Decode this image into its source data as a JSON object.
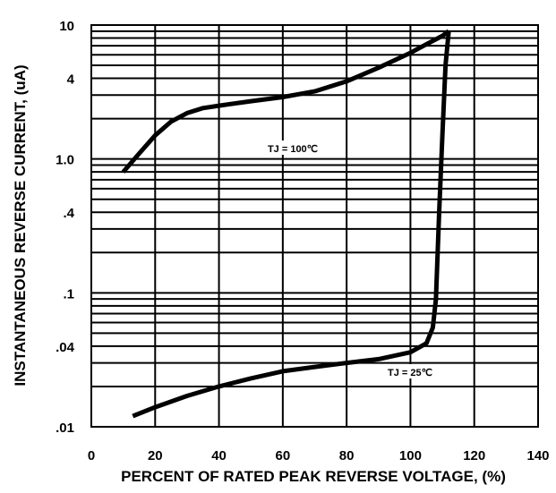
{
  "chart_data": {
    "type": "line",
    "title": "",
    "xlabel": "PERCENT OF RATED PEAK REVERSE VOLTAGE, (%)",
    "ylabel": "INSTANTANEOUS REVERSE CURRENT, (uA)",
    "xlim": [
      0,
      140
    ],
    "ylim": [
      0.01,
      10
    ],
    "y_scale": "log",
    "grid": true,
    "x_ticks": [
      0,
      20,
      40,
      60,
      80,
      100,
      120,
      140
    ],
    "x_tick_labels": [
      "0",
      "20",
      "40",
      "60",
      "80",
      "100",
      "120",
      "140"
    ],
    "y_ticks": [
      10,
      4,
      1.0,
      0.4,
      0.1,
      0.04,
      0.01
    ],
    "y_tick_labels": [
      "10",
      "4",
      "1.0",
      ".4",
      ".1",
      ".04",
      ".01"
    ],
    "series": [
      {
        "label": "TJ = 100℃",
        "x": [
          10,
          15,
          20,
          25,
          30,
          35,
          40,
          50,
          60,
          70,
          80,
          90,
          100,
          105,
          110,
          112
        ],
        "y": [
          0.8,
          1.1,
          1.5,
          1.9,
          2.2,
          2.4,
          2.5,
          2.7,
          2.9,
          3.2,
          3.8,
          4.8,
          6.2,
          7.2,
          8.3,
          9.0
        ]
      },
      {
        "label": "TJ = 25℃",
        "x": [
          13,
          20,
          30,
          40,
          50,
          60,
          70,
          80,
          90,
          100,
          105,
          107,
          108,
          109,
          110,
          111,
          112
        ],
        "y": [
          0.012,
          0.014,
          0.017,
          0.02,
          0.023,
          0.026,
          0.028,
          0.03,
          0.032,
          0.036,
          0.042,
          0.055,
          0.09,
          0.4,
          1.5,
          5.0,
          9.0
        ]
      }
    ]
  }
}
